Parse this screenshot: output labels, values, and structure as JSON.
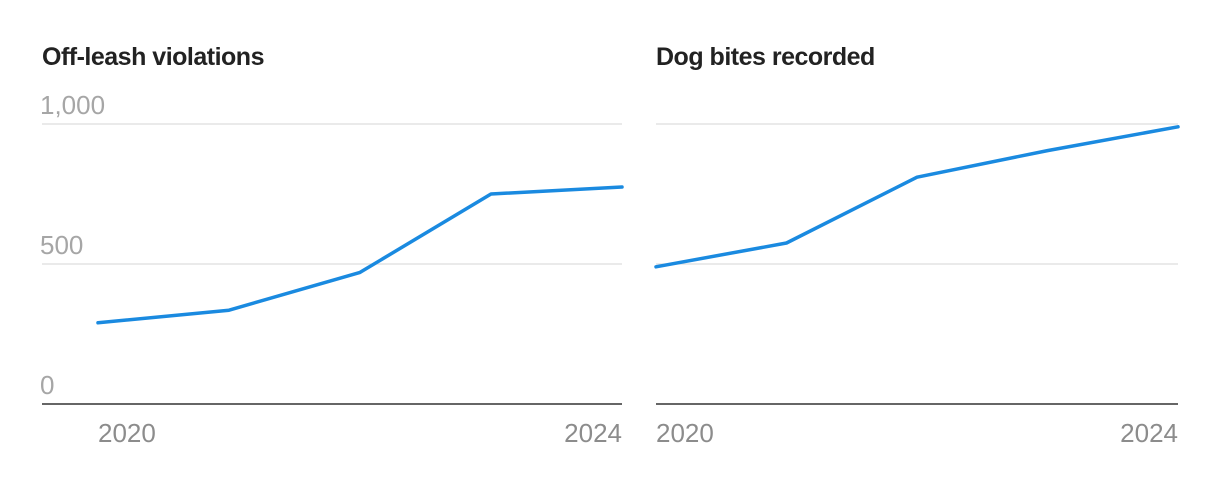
{
  "colors": {
    "series": "#1a8ae0"
  },
  "chart_data": [
    {
      "type": "line",
      "title": "Off-leash violations",
      "x": [
        2020,
        2021,
        2022,
        2023,
        2024
      ],
      "x_tick_labels": [
        "2020",
        "2024"
      ],
      "series": [
        {
          "values": [
            290,
            335,
            470,
            750,
            775
          ]
        }
      ],
      "ylim": [
        0,
        1000
      ],
      "y_ticks": [
        0,
        500,
        1000
      ],
      "y_tick_labels": [
        "0",
        "500",
        "1,000"
      ],
      "grid": true,
      "legend": "none"
    },
    {
      "type": "line",
      "title": "Dog bites recorded",
      "x": [
        2020,
        2021,
        2022,
        2023,
        2024
      ],
      "x_tick_labels": [
        "2020",
        "2024"
      ],
      "series": [
        {
          "values": [
            490,
            575,
            810,
            905,
            990
          ]
        }
      ],
      "ylim": [
        0,
        1000
      ],
      "y_ticks": [
        0,
        500,
        1000
      ],
      "grid": true,
      "legend": "none"
    }
  ]
}
